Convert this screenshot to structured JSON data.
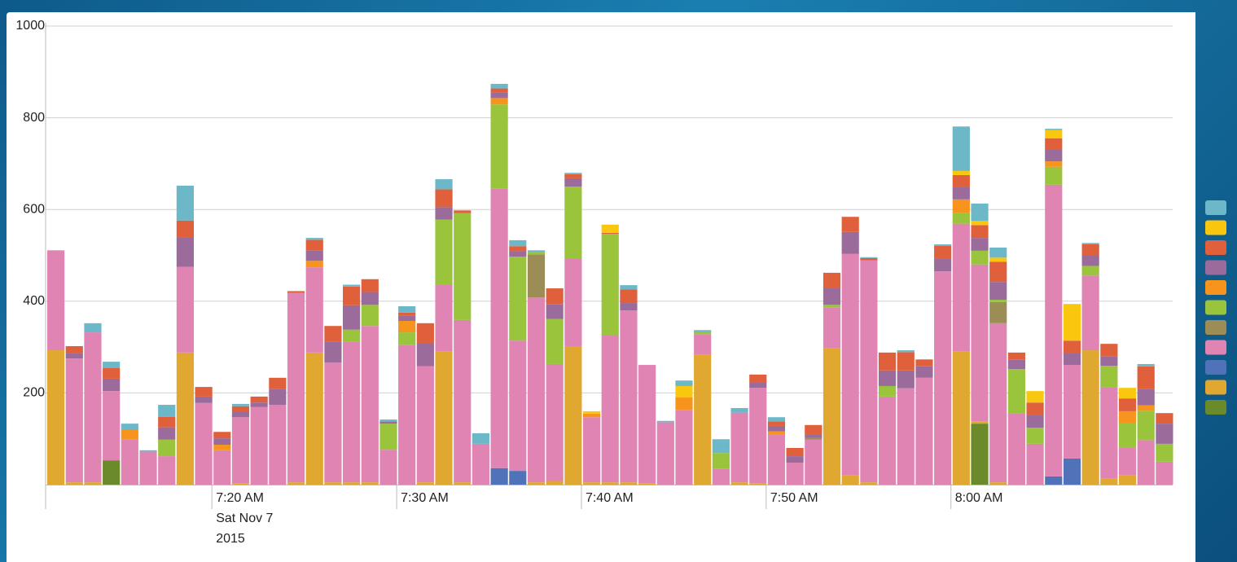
{
  "chart_data": {
    "type": "stacked_bar",
    "x": [
      11,
      12,
      13,
      14,
      15,
      16,
      17,
      18,
      19,
      20,
      21,
      22,
      23,
      24,
      25,
      26,
      27,
      28,
      29,
      30,
      31,
      32,
      33,
      34,
      35,
      36,
      37,
      38,
      39,
      40,
      41,
      42,
      43,
      44,
      45,
      46,
      47,
      48,
      49,
      50,
      51,
      52,
      53,
      54,
      55,
      56,
      57,
      58,
      59,
      60,
      61,
      62,
      63,
      64,
      65,
      66,
      67,
      68,
      69,
      70,
      71
    ],
    "xlim": [
      11,
      72
    ],
    "xticks": [
      {
        "value": 20,
        "label": "7:20 AM"
      },
      {
        "value": 30,
        "label": "7:30 AM"
      },
      {
        "value": 40,
        "label": "7:40 AM"
      },
      {
        "value": 50,
        "label": "7:50 AM"
      },
      {
        "value": 60,
        "label": "8:00 AM"
      }
    ],
    "x_date_label": "Sat Nov 7",
    "x_year_label": "2015",
    "ylim": [
      0,
      1000
    ],
    "yticks": [
      200,
      400,
      600,
      800,
      1000
    ],
    "grid": true,
    "legend": "right",
    "series": [
      {
        "color": "#6cb8c9",
        "values": [
          0,
          0,
          20,
          14,
          14,
          3,
          26,
          76,
          0,
          0,
          5,
          0,
          0,
          0,
          4,
          0,
          4,
          0,
          4,
          14,
          0,
          22,
          0,
          23,
          10,
          13,
          4,
          0,
          3,
          0,
          0,
          9,
          0,
          3,
          12,
          4,
          30,
          10,
          0,
          9,
          0,
          0,
          0,
          0,
          2,
          0,
          4,
          0,
          3,
          97,
          38,
          22,
          0,
          0,
          3,
          0,
          3,
          0,
          0,
          5,
          0
        ]
      },
      {
        "color": "#f9c80e",
        "values": [
          0,
          0,
          0,
          0,
          0,
          0,
          0,
          0,
          0,
          0,
          0,
          0,
          0,
          0,
          0,
          0,
          0,
          0,
          0,
          0,
          0,
          0,
          0,
          0,
          0,
          0,
          0,
          0,
          0,
          5,
          18,
          0,
          0,
          0,
          25,
          0,
          0,
          0,
          0,
          0,
          0,
          0,
          0,
          0,
          0,
          0,
          0,
          0,
          0,
          9,
          9,
          9,
          0,
          25,
          18,
          80,
          0,
          0,
          23,
          0,
          0
        ]
      },
      {
        "color": "#e0603c",
        "values": [
          0,
          15,
          0,
          23,
          0,
          0,
          23,
          37,
          21,
          14,
          12,
          13,
          25,
          4,
          23,
          35,
          41,
          28,
          0,
          6,
          43,
          39,
          6,
          0,
          9,
          11,
          0,
          35,
          9,
          0,
          2,
          30,
          0,
          0,
          0,
          0,
          0,
          0,
          17,
          10,
          18,
          20,
          33,
          33,
          5,
          39,
          40,
          15,
          28,
          25,
          28,
          44,
          15,
          28,
          25,
          28,
          24,
          27,
          28,
          50,
          23
        ]
      },
      {
        "color": "#9b6b9b",
        "values": [
          0,
          12,
          0,
          27,
          0,
          0,
          27,
          64,
          14,
          14,
          12,
          10,
          34,
          0,
          23,
          45,
          53,
          28,
          5,
          12,
          51,
          27,
          0,
          0,
          12,
          12,
          0,
          32,
          18,
          0,
          0,
          16,
          0,
          0,
          0,
          0,
          0,
          0,
          12,
          12,
          14,
          7,
          37,
          48,
          0,
          34,
          39,
          25,
          28,
          28,
          28,
          39,
          21,
          27,
          25,
          25,
          23,
          21,
          0,
          35,
          44
        ]
      },
      {
        "color": "#f7941d",
        "values": [
          0,
          0,
          0,
          0,
          21,
          0,
          0,
          0,
          0,
          12,
          0,
          0,
          0,
          0,
          14,
          0,
          0,
          0,
          0,
          25,
          0,
          0,
          0,
          0,
          14,
          0,
          0,
          0,
          0,
          8,
          0,
          0,
          0,
          0,
          27,
          0,
          0,
          0,
          0,
          6,
          0,
          0,
          0,
          0,
          0,
          0,
          0,
          0,
          0,
          30,
          0,
          0,
          0,
          0,
          12,
          0,
          0,
          0,
          25,
          12,
          0
        ]
      },
      {
        "color": "#9ac43c",
        "values": [
          0,
          0,
          0,
          0,
          0,
          0,
          36,
          0,
          0,
          0,
          0,
          0,
          0,
          0,
          0,
          0,
          27,
          46,
          57,
          27,
          0,
          142,
          233,
          0,
          183,
          183,
          5,
          98,
          158,
          0,
          222,
          0,
          0,
          0,
          0,
          5,
          34,
          0,
          0,
          0,
          0,
          0,
          6,
          0,
          0,
          23,
          0,
          0,
          0,
          23,
          30,
          5,
          96,
          35,
          39,
          0,
          21,
          46,
          55,
          64,
          39
        ]
      },
      {
        "color": "#9c8c56",
        "values": [
          0,
          0,
          0,
          0,
          0,
          0,
          0,
          0,
          0,
          0,
          0,
          0,
          0,
          0,
          0,
          0,
          0,
          0,
          0,
          0,
          0,
          0,
          0,
          0,
          0,
          0,
          94,
          0,
          0,
          0,
          0,
          0,
          0,
          0,
          0,
          0,
          0,
          0,
          0,
          0,
          0,
          5,
          0,
          0,
          0,
          0,
          0,
          0,
          0,
          0,
          0,
          46,
          0,
          0,
          0,
          0,
          0,
          0,
          0,
          0,
          0
        ]
      },
      {
        "color": "#e084b4",
        "values": [
          218,
          270,
          327,
          151,
          98,
          72,
          62,
          187,
          178,
          75,
          144,
          169,
          174,
          413,
          186,
          261,
          306,
          341,
          76,
          305,
          253,
          146,
          354,
          89,
          610,
          284,
          403,
          255,
          190,
          142,
          320,
          375,
          258,
          136,
          163,
          44,
          35,
          152,
          208,
          110,
          48,
          98,
          89,
          483,
          484,
          192,
          210,
          233,
          465,
          279,
          342,
          347,
          156,
          89,
          636,
          204,
          163,
          200,
          60,
          97,
          50
        ]
      },
      {
        "color": "#4f72b8",
        "values": [
          0,
          0,
          0,
          0,
          0,
          0,
          0,
          0,
          0,
          0,
          0,
          0,
          0,
          0,
          0,
          0,
          0,
          0,
          0,
          0,
          0,
          0,
          0,
          0,
          36,
          30,
          0,
          0,
          0,
          0,
          0,
          0,
          0,
          0,
          0,
          0,
          0,
          0,
          0,
          0,
          0,
          0,
          0,
          0,
          0,
          0,
          0,
          0,
          0,
          0,
          0,
          0,
          0,
          0,
          18,
          57,
          0,
          0,
          0,
          0,
          0
        ]
      },
      {
        "color": "#e0a830",
        "values": [
          293,
          5,
          5,
          0,
          0,
          0,
          0,
          288,
          0,
          0,
          3,
          0,
          0,
          5,
          288,
          5,
          5,
          5,
          0,
          0,
          5,
          290,
          5,
          0,
          0,
          0,
          5,
          8,
          302,
          5,
          5,
          5,
          3,
          0,
          0,
          284,
          0,
          5,
          3,
          0,
          0,
          0,
          297,
          20,
          5,
          0,
          0,
          0,
          0,
          290,
          5,
          5,
          0,
          0,
          0,
          0,
          293,
          13,
          20,
          0,
          0
        ]
      },
      {
        "color": "#6a8a2c",
        "values": [
          0,
          0,
          0,
          53,
          0,
          0,
          0,
          0,
          0,
          0,
          0,
          0,
          0,
          0,
          0,
          0,
          0,
          0,
          0,
          0,
          0,
          0,
          0,
          0,
          0,
          0,
          0,
          0,
          0,
          0,
          0,
          0,
          0,
          0,
          0,
          0,
          0,
          0,
          0,
          0,
          0,
          0,
          0,
          0,
          0,
          0,
          0,
          0,
          0,
          0,
          133,
          0,
          0,
          0,
          0,
          0,
          0,
          0,
          0,
          0,
          0
        ]
      }
    ]
  }
}
